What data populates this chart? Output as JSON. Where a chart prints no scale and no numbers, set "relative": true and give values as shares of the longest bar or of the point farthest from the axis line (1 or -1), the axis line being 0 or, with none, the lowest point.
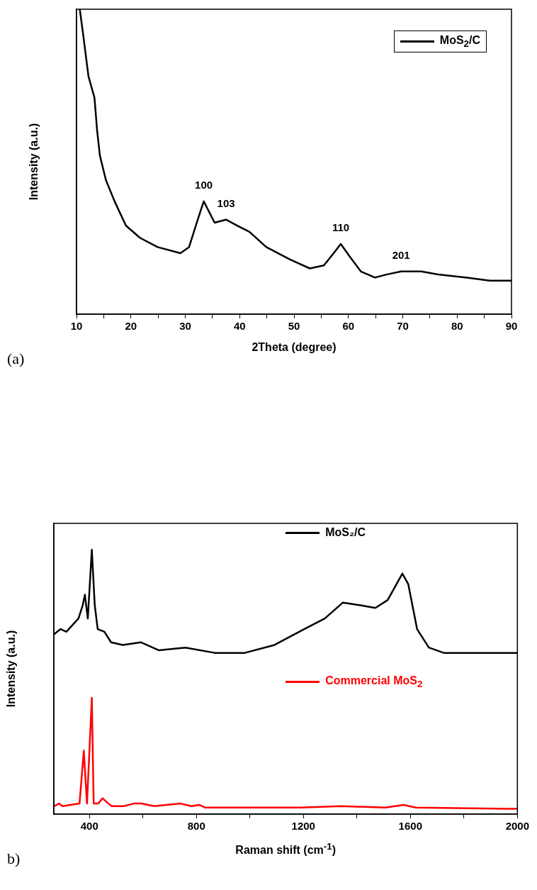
{
  "chart_data": [
    {
      "type": "line",
      "relative": true,
      "xlabel": "2Theta (degree)",
      "ylabel": "Intensity (a.u.)",
      "xlim": [
        10,
        90
      ],
      "xticks": [
        10,
        {
          "value": 15,
          "label": null
        },
        20,
        {
          "value": 25,
          "label": null
        },
        30,
        {
          "value": 35,
          "label": null
        },
        40,
        {
          "value": 45,
          "label": null
        },
        50,
        {
          "value": 55,
          "label": null
        },
        60,
        {
          "value": 65,
          "label": null
        },
        70,
        {
          "value": 75,
          "label": null
        },
        80,
        {
          "value": 85,
          "label": null
        },
        90
      ],
      "legend": "top right",
      "grid": false,
      "marker": "none",
      "series": [
        {
          "name": "MoS$_{2}$/C",
          "color": "#000000",
          "x": [
            10.6,
            11.2,
            12.2,
            13.3,
            13.8,
            14.3,
            15.4,
            17.0,
            19.1,
            21.7,
            24.9,
            29.1,
            30.7,
            32.3,
            33.4,
            35.4,
            37.5,
            39.6,
            41.8,
            44.9,
            49.2,
            52.9,
            55.5,
            57.3,
            58.6,
            60.2,
            62.3,
            64.9,
            67.0,
            69.7,
            73.4,
            76.5,
            81.8,
            86.0,
            90.0
          ],
          "values": [
            1.0,
            0.92,
            0.78,
            0.71,
            0.6,
            0.52,
            0.44,
            0.37,
            0.29,
            0.25,
            0.22,
            0.2,
            0.22,
            0.31,
            0.37,
            0.3,
            0.31,
            0.29,
            0.27,
            0.22,
            0.18,
            0.15,
            0.16,
            0.2,
            0.23,
            0.19,
            0.14,
            0.12,
            0.13,
            0.14,
            0.14,
            0.13,
            0.12,
            0.11,
            0.11
          ]
        }
      ],
      "annotations": [
        {
          "text": "100",
          "x": 33.4,
          "y": 0.37
        },
        {
          "text": "103",
          "x": 37.5,
          "y": 0.31
        },
        {
          "text": "110",
          "x": 58.6,
          "y": 0.23
        },
        {
          "text": "201",
          "x": 69.7,
          "y": 0.14
        },
        "(a)"
      ]
    },
    {
      "type": "line",
      "relative": true,
      "xlabel": "Raman shift (cm$^{-1}$)",
      "ylabel": "Intensity (a.u.)",
      "xlim": [
        267,
        2000
      ],
      "xticks": [
        400,
        {
          "value": 600,
          "label": null
        },
        800,
        {
          "value": 1000,
          "label": null
        },
        1200,
        {
          "value": 1400,
          "label": null
        },
        1600,
        {
          "value": 1800,
          "label": null
        },
        2000
      ],
      "legend": "top right",
      "grid": false,
      "marker": "none",
      "series": [
        {
          "name": "MoS₂/C",
          "color": "#000000",
          "x": [
            267,
            292,
            314,
            359,
            375,
            383,
            394,
            409,
            420,
            431,
            456,
            481,
            525,
            592,
            659,
            759,
            869,
            981,
            1092,
            1203,
            1280,
            1347,
            1413,
            1469,
            1515,
            1570,
            1592,
            1625,
            1669,
            1725,
            1869,
            1976,
            2000
          ],
          "values": [
            0.68,
            0.7,
            0.69,
            0.74,
            0.79,
            0.83,
            0.74,
            1.0,
            0.79,
            0.7,
            0.69,
            0.65,
            0.64,
            0.65,
            0.62,
            0.63,
            0.61,
            0.61,
            0.64,
            0.7,
            0.74,
            0.8,
            0.79,
            0.78,
            0.81,
            0.91,
            0.87,
            0.7,
            0.63,
            0.61,
            0.61,
            0.61,
            0.61
          ]
        },
        {
          "name": "Commercial MoS$_{2}$",
          "color": "#ff0000",
          "x": [
            267,
            287,
            299,
            363,
            379,
            391,
            409,
            416,
            433,
            449,
            471,
            483,
            528,
            566,
            594,
            642,
            741,
            781,
            810,
            832,
            1188,
            1341,
            1506,
            1575,
            1620,
            1963,
            2000
          ],
          "values": [
            0.03,
            0.04,
            0.03,
            0.04,
            0.24,
            0.04,
            0.44,
            0.04,
            0.04,
            0.06,
            0.04,
            0.03,
            0.03,
            0.04,
            0.04,
            0.03,
            0.04,
            0.03,
            0.035,
            0.025,
            0.025,
            0.03,
            0.025,
            0.035,
            0.025,
            0.02,
            0.02
          ]
        }
      ],
      "annotations": [
        "b)"
      ]
    }
  ]
}
